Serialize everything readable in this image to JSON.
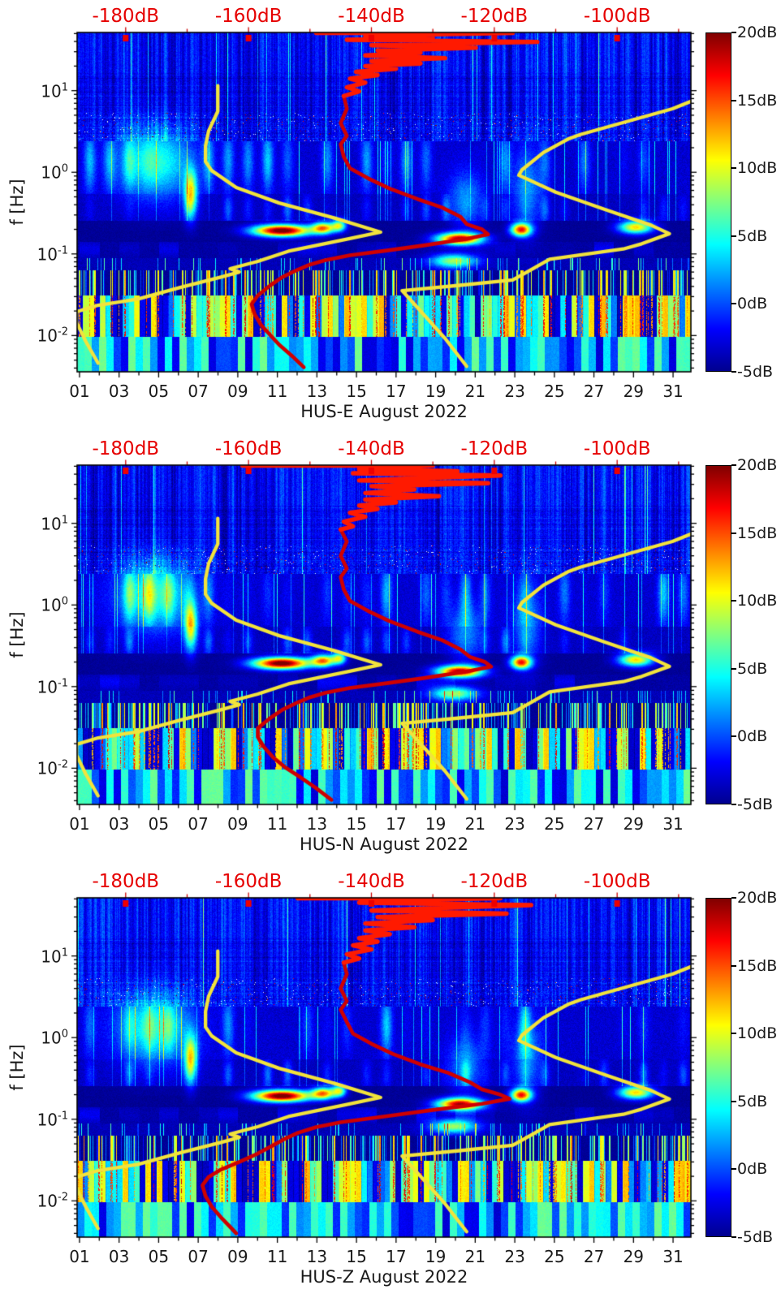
{
  "chart_data": {
    "type": "heatmap",
    "subtype": "seismic-noise-spectrogram",
    "station": "HUS",
    "period": "August 2022",
    "grid": false,
    "colors": {
      "top_axis_text": "#e60000",
      "top_axis_tick": "#cc0000",
      "top_axis_marker": "#ee0000",
      "noise_model_curve": "#f2e33c",
      "median_curve": "#cf0000",
      "median_curve_top": "#ff1a00",
      "tick": "#000000",
      "frame": "#000000",
      "label_text": "#1a1a1a",
      "background": "#ffffff"
    },
    "colormap": {
      "name": "jet",
      "min_db": -5,
      "max_db": 20,
      "stops": [
        {
          "pos": 0.0,
          "color": "#00008f"
        },
        {
          "pos": 0.125,
          "color": "#0000ff"
        },
        {
          "pos": 0.375,
          "color": "#00ffff"
        },
        {
          "pos": 0.5,
          "color": "#80ff80"
        },
        {
          "pos": 0.625,
          "color": "#ffff00"
        },
        {
          "pos": 0.875,
          "color": "#ff0000"
        },
        {
          "pos": 1.0,
          "color": "#800000"
        }
      ]
    },
    "colorbar": {
      "labels": [
        "20dB",
        "15dB",
        "10dB",
        "5dB",
        "0dB",
        "-5dB"
      ],
      "values": [
        20,
        15,
        10,
        5,
        0,
        -5
      ]
    },
    "top_axis": {
      "unit": "dB",
      "labels": [
        "-180dB",
        "-160dB",
        "-140dB",
        "-120dB",
        "-100dB"
      ],
      "values": [
        -180,
        -160,
        -140,
        -120,
        -100
      ],
      "range": [
        -187.9,
        -88.0
      ],
      "tick_step": 10
    },
    "x_axis": {
      "labels": [
        "01",
        "03",
        "05",
        "07",
        "09",
        "11",
        "13",
        "15",
        "17",
        "19",
        "21",
        "23",
        "25",
        "27",
        "29",
        "31"
      ],
      "values": [
        1,
        3,
        5,
        7,
        9,
        11,
        13,
        15,
        17,
        19,
        21,
        23,
        25,
        27,
        29,
        31
      ],
      "range_days": [
        0.88,
        31.9
      ],
      "minor_step": 1
    },
    "y_axis": {
      "label": "f [Hz]",
      "base": "10",
      "tick_exponents": [
        1,
        0,
        -1,
        -2
      ],
      "range_hz": [
        0.0036,
        51.6
      ]
    },
    "overlays": {
      "low_noise_model_db_hz": [
        [
          -165,
          11.5
        ],
        [
          -165,
          5.6
        ],
        [
          -166.5,
          3.2
        ],
        [
          -167,
          2.1
        ],
        [
          -167,
          1.35
        ],
        [
          -166,
          1.05
        ],
        [
          -162,
          0.65
        ],
        [
          -155,
          0.42
        ],
        [
          -146,
          0.275
        ],
        [
          -138.5,
          0.185
        ],
        [
          -144,
          0.152
        ],
        [
          -153.5,
          0.108
        ],
        [
          -158.5,
          0.081
        ],
        [
          -163,
          0.066
        ],
        [
          -161.5,
          0.06
        ],
        [
          -164.5,
          0.052
        ],
        [
          -171,
          0.039
        ],
        [
          -178,
          0.028
        ],
        [
          -184.5,
          0.0235
        ],
        [
          -188,
          0.0196
        ],
        [
          -188,
          0.0145
        ],
        [
          -186.5,
          0.0085
        ],
        [
          -184.5,
          0.0046
        ]
      ],
      "high_noise_model_db_hz": [
        [
          -86,
          8.5
        ],
        [
          -91,
          6.0
        ],
        [
          -106,
          2.9
        ],
        [
          -108,
          2.55
        ],
        [
          -112,
          1.75
        ],
        [
          -115.5,
          1.07
        ],
        [
          -116,
          0.92
        ],
        [
          -110,
          0.57
        ],
        [
          -102,
          0.35
        ],
        [
          -94.5,
          0.225
        ],
        [
          -91.5,
          0.177
        ],
        [
          -96,
          0.133
        ],
        [
          -99,
          0.115
        ],
        [
          -111,
          0.086
        ],
        [
          -114.5,
          0.061
        ],
        [
          -117,
          0.048
        ],
        [
          -126,
          0.041
        ],
        [
          -135,
          0.0355
        ],
        [
          -132,
          0.02
        ],
        [
          -128,
          0.0092
        ],
        [
          -124.5,
          0.0042
        ]
      ]
    },
    "features_day_hz_amp": [
      {
        "day": 4.8,
        "f": 1.35,
        "sd": 1.3,
        "sf": 0.3,
        "amp": 8.5
      },
      {
        "day": 6.6,
        "f": 0.55,
        "sd": 0.22,
        "sf": 0.2,
        "amp": 14
      },
      {
        "day": 11.2,
        "f": 0.195,
        "sd": 1.0,
        "sf": 0.05,
        "amp": 26
      },
      {
        "day": 13.3,
        "f": 0.21,
        "sd": 0.4,
        "sf": 0.05,
        "amp": 17
      },
      {
        "day": 14.1,
        "f": 0.225,
        "sd": 0.25,
        "sf": 0.05,
        "amp": 13
      },
      {
        "day": 20.2,
        "f": 0.155,
        "sd": 0.8,
        "sf": 0.05,
        "amp": 23
      },
      {
        "day": 19.9,
        "f": 0.083,
        "sd": 0.8,
        "sf": 0.06,
        "amp": 12
      },
      {
        "day": 23.3,
        "f": 0.2,
        "sd": 0.35,
        "sf": 0.055,
        "amp": 20
      },
      {
        "day": 29.1,
        "f": 0.215,
        "sd": 0.6,
        "sf": 0.055,
        "amp": 16
      },
      {
        "day": 23.6,
        "f": 0.6,
        "sd": 0.5,
        "sf": 0.35,
        "amp": 5
      },
      {
        "day": 20.5,
        "f": 0.45,
        "sd": 0.6,
        "sf": 0.25,
        "amp": 5
      }
    ],
    "panels": [
      {
        "component": "E",
        "title": "HUS-E August 2022",
        "seed": 11,
        "median_top_db_hz": [
          [
            -149,
            51
          ],
          [
            -117,
            51
          ],
          [
            -135,
            48
          ],
          [
            -141,
            46
          ],
          [
            -130,
            44
          ],
          [
            -144,
            42
          ],
          [
            -113,
            39.5
          ],
          [
            -125,
            38
          ],
          [
            -140,
            36
          ],
          [
            -123,
            33.5
          ],
          [
            -139,
            31
          ],
          [
            -132,
            29
          ],
          [
            -141,
            27
          ],
          [
            -128,
            25
          ],
          [
            -140,
            23
          ],
          [
            -132,
            21.5
          ],
          [
            -141,
            20
          ],
          [
            -136,
            18.5
          ],
          [
            -142.5,
            17
          ],
          [
            -139,
            15.5
          ],
          [
            -143.5,
            14
          ],
          [
            -141,
            12.5
          ],
          [
            -144,
            11
          ],
          [
            -142,
            9.8
          ],
          [
            -144.5,
            8.6
          ]
        ],
        "median_db_hz": [
          [
            -144.5,
            8.6
          ],
          [
            -144,
            6
          ],
          [
            -145,
            4
          ],
          [
            -144,
            2.8
          ],
          [
            -145,
            2.2
          ],
          [
            -144.5,
            1.55
          ],
          [
            -143.5,
            1.12
          ],
          [
            -140.5,
            0.84
          ],
          [
            -137,
            0.63
          ],
          [
            -132.5,
            0.47
          ],
          [
            -128.5,
            0.37
          ],
          [
            -125.5,
            0.285
          ],
          [
            -124.5,
            0.232
          ],
          [
            -122,
            0.2
          ],
          [
            -121,
            0.173
          ],
          [
            -124.5,
            0.153
          ],
          [
            -131.5,
            0.127
          ],
          [
            -137.5,
            0.11
          ],
          [
            -143.5,
            0.096
          ],
          [
            -147.5,
            0.084
          ],
          [
            -150,
            0.074
          ],
          [
            -152,
            0.064
          ],
          [
            -154.5,
            0.052
          ],
          [
            -156.5,
            0.041
          ],
          [
            -158.5,
            0.031
          ],
          [
            -159.5,
            0.0242
          ],
          [
            -159,
            0.0182
          ],
          [
            -158,
            0.0136
          ],
          [
            -156.5,
            0.0102
          ],
          [
            -155,
            0.0077
          ],
          [
            -153,
            0.0057
          ],
          [
            -151,
            0.0041
          ]
        ]
      },
      {
        "component": "N",
        "title": "HUS-N August 2022",
        "seed": 22,
        "median_top_db_hz": [
          [
            -161,
            51
          ],
          [
            -130,
            51
          ],
          [
            -137,
            48
          ],
          [
            -142,
            46
          ],
          [
            -126,
            43.5
          ],
          [
            -143,
            41
          ],
          [
            -119,
            38.5
          ],
          [
            -131,
            36
          ],
          [
            -142,
            33.5
          ],
          [
            -121,
            31
          ],
          [
            -140,
            28.5
          ],
          [
            -133,
            26
          ],
          [
            -141,
            23.5
          ],
          [
            -129,
            21.5
          ],
          [
            -141,
            19.5
          ],
          [
            -136,
            18
          ],
          [
            -142,
            16.5
          ],
          [
            -139,
            15
          ],
          [
            -143.5,
            13.5
          ],
          [
            -141,
            12
          ],
          [
            -144.5,
            10.5
          ],
          [
            -143,
            9.2
          ],
          [
            -145,
            8.4
          ]
        ],
        "median_db_hz": [
          [
            -145,
            8.4
          ],
          [
            -144,
            6
          ],
          [
            -145,
            4
          ],
          [
            -144,
            2.8
          ],
          [
            -145,
            2.2
          ],
          [
            -144.5,
            1.55
          ],
          [
            -143.5,
            1.12
          ],
          [
            -140.5,
            0.84
          ],
          [
            -137,
            0.63
          ],
          [
            -132.5,
            0.47
          ],
          [
            -128.5,
            0.37
          ],
          [
            -125.5,
            0.285
          ],
          [
            -124,
            0.232
          ],
          [
            -121.5,
            0.2
          ],
          [
            -120.5,
            0.175
          ],
          [
            -124.5,
            0.153
          ],
          [
            -131.5,
            0.127
          ],
          [
            -137.5,
            0.11
          ],
          [
            -143.5,
            0.096
          ],
          [
            -147.5,
            0.084
          ],
          [
            -150,
            0.074
          ],
          [
            -152,
            0.064
          ],
          [
            -154.5,
            0.052
          ],
          [
            -156.5,
            0.041
          ],
          [
            -158.5,
            0.031
          ],
          [
            -158.5,
            0.0242
          ],
          [
            -157.5,
            0.0182
          ],
          [
            -156,
            0.0136
          ],
          [
            -154,
            0.0102
          ],
          [
            -151.5,
            0.0077
          ],
          [
            -149,
            0.0057
          ],
          [
            -146.5,
            0.0041
          ]
        ]
      },
      {
        "component": "Z",
        "title": "HUS-Z August 2022",
        "seed": 33,
        "median_top_db_hz": [
          [
            -152,
            51
          ],
          [
            -119,
            51
          ],
          [
            -136,
            48
          ],
          [
            -142,
            45
          ],
          [
            -114,
            42
          ],
          [
            -128,
            39
          ],
          [
            -140,
            36
          ],
          [
            -118,
            33
          ],
          [
            -139,
            30
          ],
          [
            -130,
            27.5
          ],
          [
            -141,
            25
          ],
          [
            -133,
            22.5
          ],
          [
            -141,
            20.5
          ],
          [
            -137,
            18.5
          ],
          [
            -142,
            16.5
          ],
          [
            -139,
            15
          ],
          [
            -143,
            13.5
          ],
          [
            -140,
            12
          ],
          [
            -144,
            10.5
          ],
          [
            -142,
            9.3
          ],
          [
            -144.5,
            8.3
          ]
        ],
        "median_db_hz": [
          [
            -144.5,
            8.3
          ],
          [
            -144,
            6
          ],
          [
            -145,
            4
          ],
          [
            -144,
            2.8
          ],
          [
            -145,
            2.2
          ],
          [
            -144,
            1.55
          ],
          [
            -143,
            1.12
          ],
          [
            -140,
            0.84
          ],
          [
            -136.5,
            0.63
          ],
          [
            -132,
            0.47
          ],
          [
            -127.5,
            0.37
          ],
          [
            -124,
            0.285
          ],
          [
            -122,
            0.232
          ],
          [
            -119,
            0.2
          ],
          [
            -117.5,
            0.178
          ],
          [
            -122,
            0.155
          ],
          [
            -130,
            0.13
          ],
          [
            -138,
            0.108
          ],
          [
            -145,
            0.092
          ],
          [
            -149,
            0.08
          ],
          [
            -152,
            0.068
          ],
          [
            -154,
            0.058
          ],
          [
            -156,
            0.048
          ],
          [
            -158.5,
            0.038
          ],
          [
            -161.5,
            0.03
          ],
          [
            -164.5,
            0.0242
          ],
          [
            -166.5,
            0.0196
          ],
          [
            -167.5,
            0.0155
          ],
          [
            -167,
            0.0115
          ],
          [
            -166,
            0.0085
          ],
          [
            -164.5,
            0.0063
          ],
          [
            -163,
            0.0048
          ],
          [
            -162,
            0.004
          ]
        ]
      }
    ]
  }
}
